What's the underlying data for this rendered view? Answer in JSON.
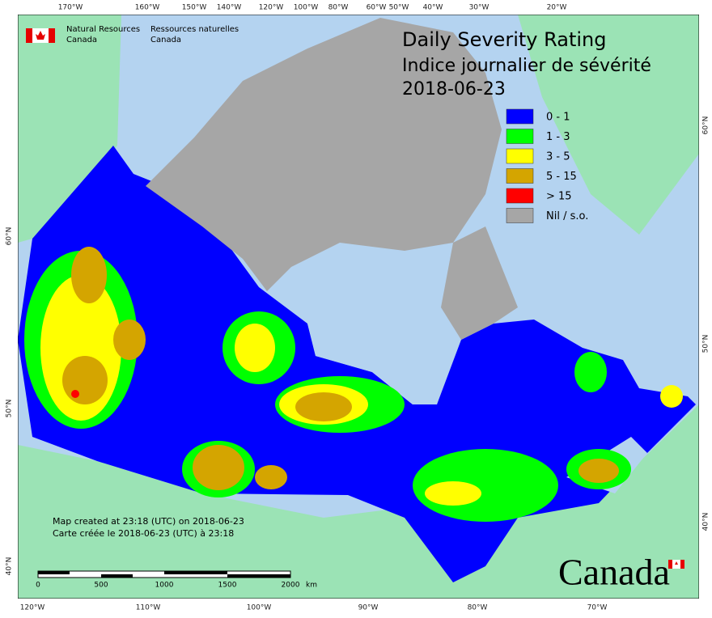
{
  "header": {
    "org_en": [
      "Natural Resources",
      "Canada"
    ],
    "org_fr": [
      "Ressources naturelles",
      "Canada"
    ]
  },
  "title": [
    "Daily Severity Rating",
    "Indice journalier de sévérité",
    "2018-06-23"
  ],
  "legend": [
    {
      "label": "0 - 1",
      "color": "#0000ff"
    },
    {
      "label": "1 - 3",
      "color": "#00ff00"
    },
    {
      "label": "3 - 5",
      "color": "#ffff00"
    },
    {
      "label": "5 - 15",
      "color": "#d4a500"
    },
    {
      "label": "> 15",
      "color": "#ff0000"
    },
    {
      "label": "Nil / s.o.",
      "color": "#a6a6a6"
    }
  ],
  "top_labels": [
    "170°W",
    "160°W",
    "150°W",
    "140°W",
    "120°W",
    "100°W",
    "80°W",
    "60°W",
    "50°W",
    "40°W",
    "30°W",
    "20°W"
  ],
  "bottom_labels": [
    "120°W",
    "110°W",
    "100°W",
    "90°W",
    "80°W",
    "70°W"
  ],
  "left_labels": [
    "60°N",
    "50°N",
    "40°N"
  ],
  "right_labels": [
    "60°N",
    "50°N",
    "40°N"
  ],
  "scale_bar": {
    "labels": [
      "0",
      "500",
      "1000",
      "1500",
      "2000"
    ],
    "unit": "km"
  },
  "credits": [
    "Map created at 23:18 (UTC) on 2018-06-23",
    "Carte créée le 2018-06-23 (UTC) à 23:18"
  ],
  "wordmark": "Canada"
}
